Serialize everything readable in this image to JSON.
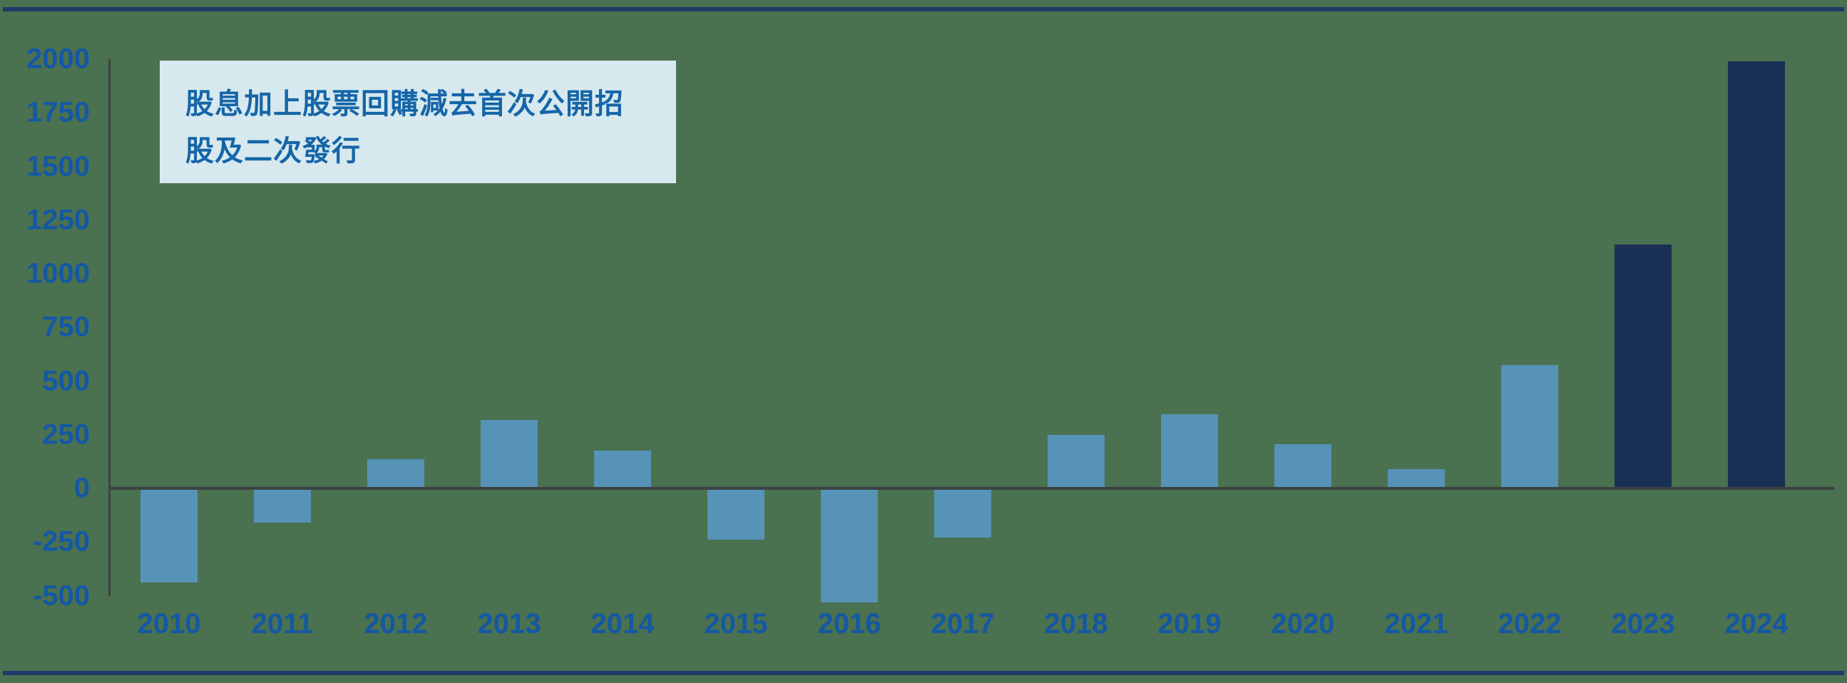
{
  "page": {
    "background_color": "#4A7150",
    "border_color": "#1F3A68"
  },
  "annotation": {
    "line1": "股息加上股票回購減去首次公開招",
    "line2": "股及二次發行",
    "background_color": "#D7E9EE",
    "text_color": "#1565A8"
  },
  "chart_data": {
    "type": "bar",
    "title": "",
    "xlabel": "",
    "ylabel": "",
    "categories": [
      "2010",
      "2011",
      "2012",
      "2013",
      "2014",
      "2015",
      "2016",
      "2017",
      "2018",
      "2019",
      "2020",
      "2021",
      "2022",
      "2023",
      "2024"
    ],
    "values": [
      -440,
      -160,
      135,
      320,
      175,
      -240,
      -530,
      -230,
      250,
      345,
      205,
      90,
      575,
      1135,
      1990
    ],
    "yticks": [
      2000,
      1750,
      1500,
      1250,
      1000,
      750,
      500,
      250,
      0,
      -250,
      -500
    ],
    "ylim": [
      -560,
      2000
    ],
    "grid": false,
    "legend_position": "none",
    "bar_color_default": "#5792B7",
    "bar_color_highlight": "#1A3055",
    "highlight_categories": [
      "2023",
      "2024"
    ],
    "axis_line_color": "#3C4342",
    "tick_label_color": "#1458A4"
  }
}
